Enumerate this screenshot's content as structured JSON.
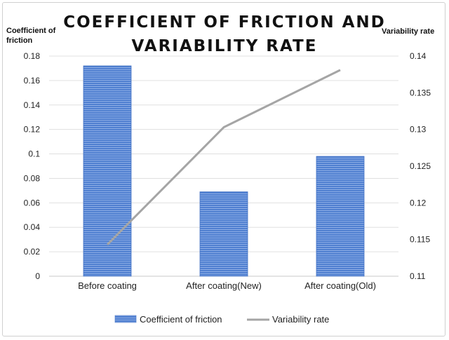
{
  "chart_data": {
    "type": "bar",
    "title_lines": [
      "COEFFICIENT OF FRICTION AND",
      "VARIABILITY RATE"
    ],
    "ylabel_left": "Coefficient of friction",
    "ylabel_right": "Variability rate",
    "categories": [
      "Before coating",
      "After coating(New)",
      "After coating(Old)"
    ],
    "y_left": {
      "range": [
        0,
        0.18
      ],
      "ticks": [
        "0",
        "0.02",
        "0.04",
        "0.06",
        "0.08",
        "0.1",
        "0.12",
        "0.14",
        "0.16",
        "0.18"
      ]
    },
    "y_right": {
      "range": [
        0.11,
        0.14
      ],
      "ticks": [
        "0.11",
        "0.115",
        "0.12",
        "0.125",
        "0.13",
        "0.135",
        "0.14"
      ]
    },
    "grid": true,
    "legend_position": "bottom",
    "series": [
      {
        "name": "Coefficient of friction",
        "type": "bar",
        "axis": "left",
        "color": "#4472c4",
        "values": [
          0.172,
          0.069,
          0.098
        ]
      },
      {
        "name": "Variability rate",
        "type": "line",
        "axis": "right",
        "color": "#a5a5a5",
        "values": [
          0.1143,
          0.1303,
          0.1381
        ]
      }
    ]
  }
}
